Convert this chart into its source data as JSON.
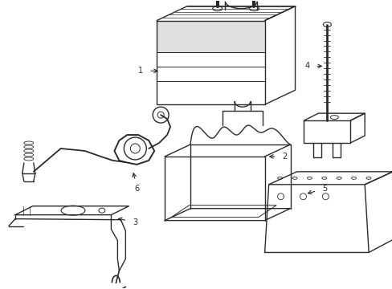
{
  "background_color": "#ffffff",
  "line_color": "#2a2a2a",
  "label_color": "#000000",
  "lw": 1.0,
  "fig_width": 4.89,
  "fig_height": 3.6,
  "dpi": 100
}
